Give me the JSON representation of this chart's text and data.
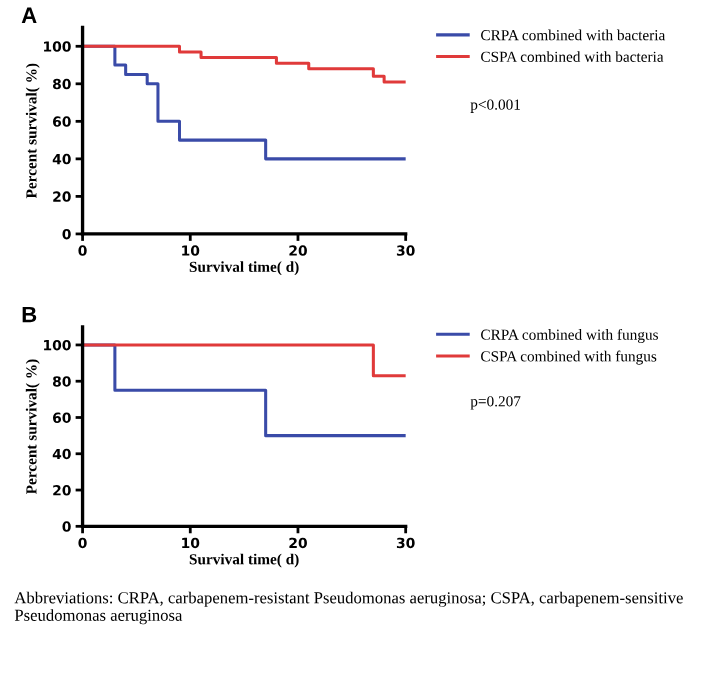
{
  "chart_data": [
    {
      "type": "step",
      "title": "A",
      "xlabel": "Survival time( d)",
      "ylabel": "Percent survival( %)",
      "xlim": [
        0,
        30
      ],
      "xticks": [
        0,
        10,
        20,
        30
      ],
      "ylim": [
        0,
        110
      ],
      "yticks": [
        0,
        20,
        40,
        60,
        80,
        100
      ],
      "legend": "right",
      "grid": false,
      "annotations": [
        "p<0.001"
      ],
      "series": [
        {
          "name": "CRPA combined with bacteria",
          "color": "#3a4ba8",
          "x": [
            0,
            3,
            4,
            6,
            7,
            9,
            17,
            30
          ],
          "values": [
            100,
            90,
            85,
            80,
            60,
            50,
            40,
            40
          ]
        },
        {
          "name": "CSPA combined with bacteria",
          "color": "#e03a3a",
          "x": [
            0,
            9,
            11,
            18,
            21,
            27,
            28,
            30
          ],
          "values": [
            100,
            97,
            94,
            91,
            88,
            84,
            81,
            81
          ]
        }
      ]
    },
    {
      "type": "step",
      "title": "B",
      "xlabel": "Survival time( d)",
      "ylabel": "Percent survival( %)",
      "xlim": [
        0,
        30
      ],
      "xticks": [
        0,
        10,
        20,
        30
      ],
      "ylim": [
        0,
        110
      ],
      "yticks": [
        0,
        20,
        40,
        60,
        80,
        100
      ],
      "legend": "right",
      "grid": false,
      "annotations": [
        "p=0.207",
        "Abbreviations: CRPA, carbapenem-resistant Pseudomonas aeruginosa; CSPA, carbapenem-sensitive Pseudomonas aeruginosa"
      ],
      "series": [
        {
          "name": "CRPA combined with fungus",
          "color": "#3a4ba8",
          "x": [
            0,
            3,
            17,
            30
          ],
          "values": [
            100,
            75,
            50,
            50
          ]
        },
        {
          "name": "CSPA combined with fungus",
          "color": "#e03a3a",
          "x": [
            0,
            27,
            30
          ],
          "values": [
            100,
            83,
            83
          ]
        }
      ]
    }
  ]
}
